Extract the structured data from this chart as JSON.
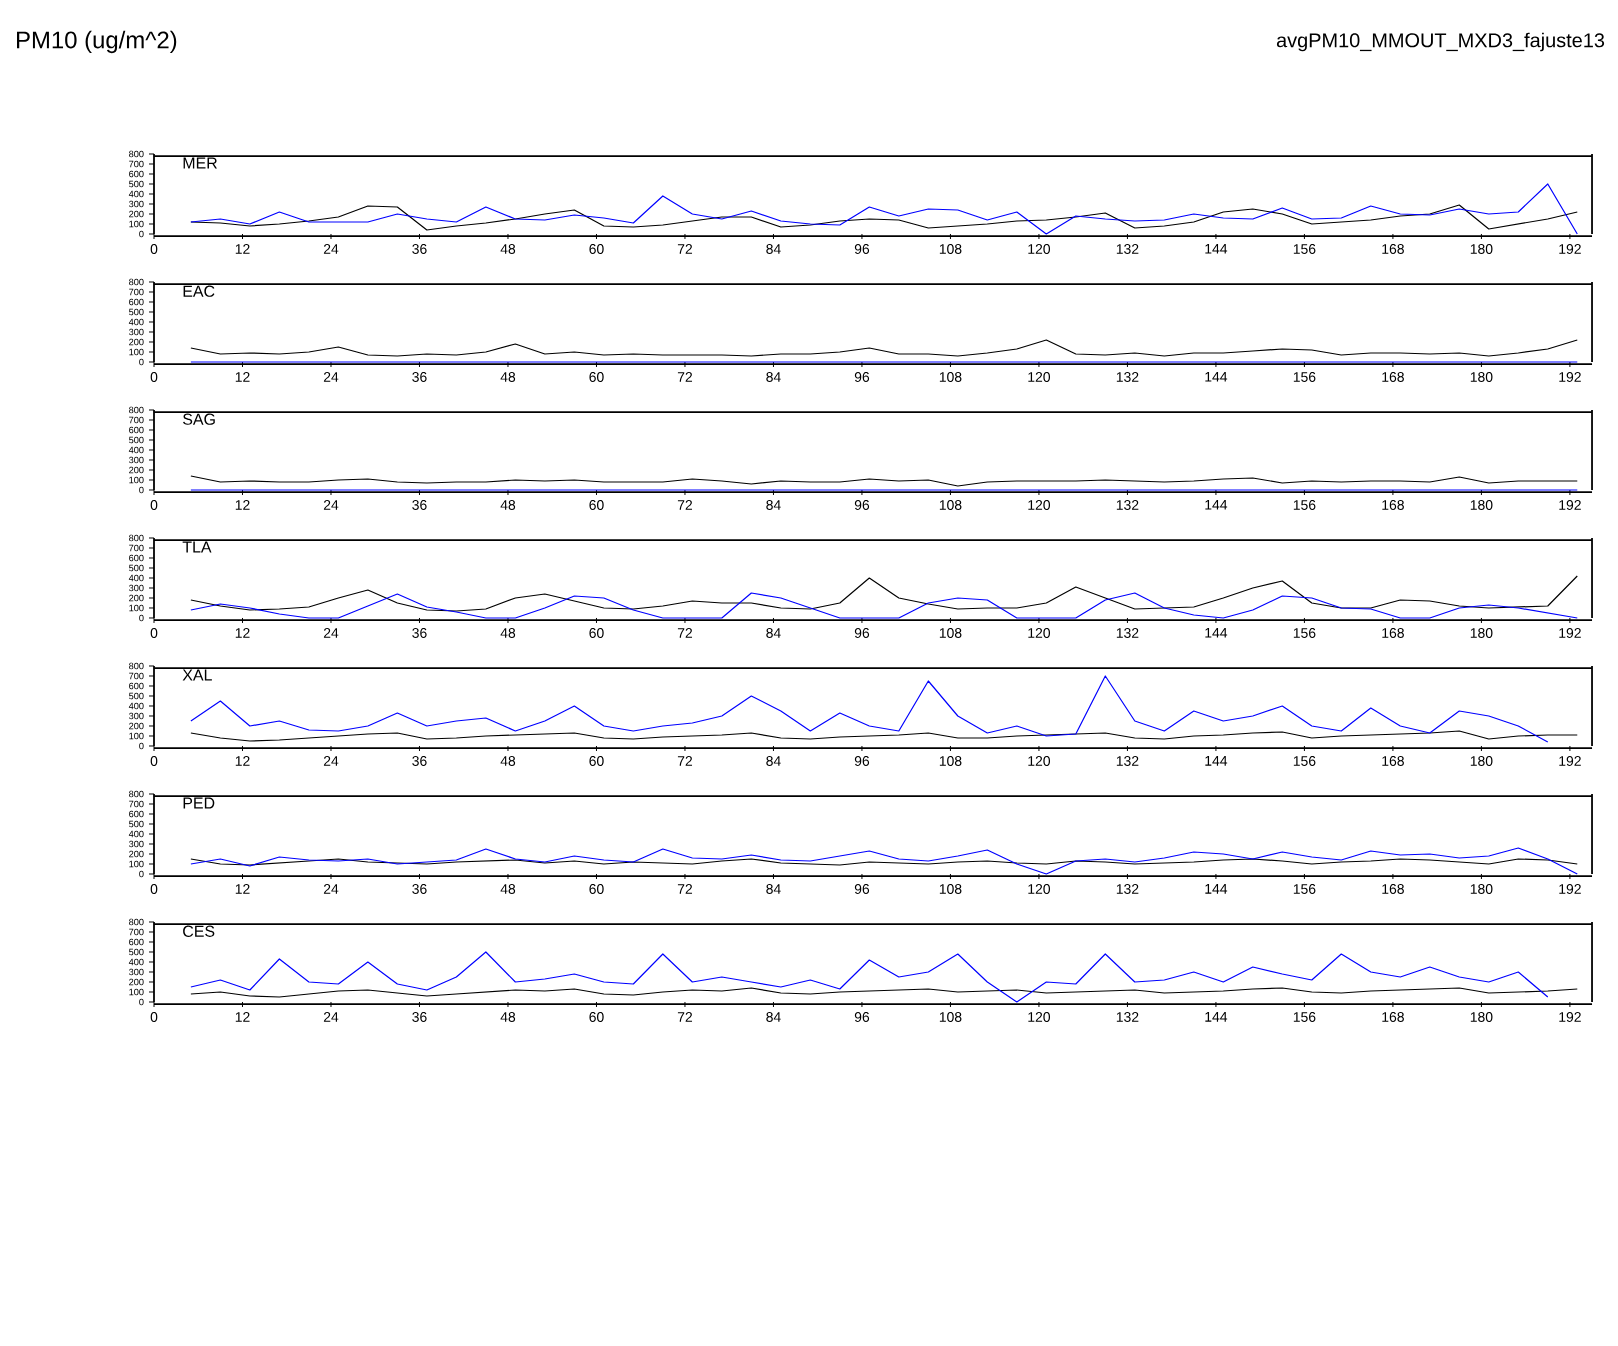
{
  "chart_data": [
    {
      "type": "line",
      "title": "PM10 (ug/m^2)",
      "subtitle": "avgPM10_MMOUT_MXD3_fajuste13",
      "annotations": [
        "MER"
      ],
      "x": [
        5,
        9,
        13,
        17,
        21,
        25,
        29,
        33,
        37,
        41,
        45,
        49,
        53,
        57,
        61,
        65,
        69,
        73,
        77,
        81,
        85,
        89,
        93,
        97,
        101,
        105,
        109,
        113,
        117,
        121,
        125,
        129,
        133,
        137,
        141,
        145,
        149,
        153,
        157,
        161,
        165,
        169,
        173,
        177,
        181,
        185,
        189,
        193
      ],
      "xlim": [
        0,
        195
      ],
      "xticks": [
        0,
        12,
        24,
        36,
        48,
        60,
        72,
        84,
        96,
        108,
        120,
        132,
        144,
        156,
        168,
        180,
        192
      ],
      "ylim": [
        0,
        800
      ],
      "yticks": [
        0,
        100,
        200,
        300,
        400,
        500,
        600,
        700,
        800
      ],
      "series": [
        {
          "color": "#000000",
          "values": [
            120,
            110,
            80,
            100,
            130,
            170,
            280,
            270,
            40,
            80,
            110,
            150,
            200,
            240,
            80,
            70,
            90,
            130,
            170,
            170,
            70,
            90,
            130,
            150,
            140,
            60,
            80,
            100,
            130,
            140,
            170,
            210,
            60,
            80,
            120,
            220,
            250,
            200,
            100,
            120,
            140,
            180,
            200,
            290,
            50,
            100,
            150,
            220
          ]
        },
        {
          "color": "#0000ff",
          "values": [
            120,
            150,
            100,
            220,
            120,
            120,
            120,
            200,
            150,
            120,
            270,
            150,
            140,
            190,
            160,
            110,
            380,
            200,
            150,
            230,
            130,
            100,
            90,
            270,
            180,
            250,
            240,
            140,
            220,
            0,
            180,
            150,
            130,
            140,
            200,
            160,
            150,
            260,
            150,
            160,
            280,
            200,
            190,
            250,
            200,
            220,
            500,
            0
          ]
        }
      ]
    },
    {
      "type": "line",
      "annotations": [
        "EAC"
      ],
      "x": [
        5,
        9,
        13,
        17,
        21,
        25,
        29,
        33,
        37,
        41,
        45,
        49,
        53,
        57,
        61,
        65,
        69,
        73,
        77,
        81,
        85,
        89,
        93,
        97,
        101,
        105,
        109,
        113,
        117,
        121,
        125,
        129,
        133,
        137,
        141,
        145,
        149,
        153,
        157,
        161,
        165,
        169,
        173,
        177,
        181,
        185,
        189,
        193
      ],
      "xlim": [
        0,
        195
      ],
      "xticks": [
        0,
        12,
        24,
        36,
        48,
        60,
        72,
        84,
        96,
        108,
        120,
        132,
        144,
        156,
        168,
        180,
        192
      ],
      "ylim": [
        0,
        800
      ],
      "yticks": [
        0,
        100,
        200,
        300,
        400,
        500,
        600,
        700,
        800
      ],
      "series": [
        {
          "color": "#000000",
          "values": [
            140,
            80,
            90,
            80,
            100,
            150,
            70,
            60,
            80,
            70,
            100,
            180,
            80,
            100,
            70,
            80,
            70,
            70,
            70,
            60,
            80,
            80,
            100,
            140,
            80,
            80,
            60,
            90,
            130,
            220,
            80,
            70,
            90,
            60,
            90,
            90,
            110,
            130,
            120,
            70,
            90,
            90,
            80,
            90,
            60,
            90,
            130,
            220
          ]
        },
        {
          "color": "#0000ff",
          "values": [
            0,
            0,
            0,
            0,
            0,
            0,
            0,
            0,
            0,
            0,
            0,
            0,
            0,
            0,
            0,
            0,
            0,
            0,
            0,
            0,
            0,
            0,
            0,
            0,
            0,
            0,
            0,
            0,
            0,
            0,
            0,
            0,
            0,
            0,
            0,
            0,
            0,
            0,
            0,
            0,
            0,
            0,
            0,
            0,
            0,
            0,
            0,
            0
          ]
        }
      ]
    },
    {
      "type": "line",
      "annotations": [
        "SAG"
      ],
      "x": [
        5,
        9,
        13,
        17,
        21,
        25,
        29,
        33,
        37,
        41,
        45,
        49,
        53,
        57,
        61,
        65,
        69,
        73,
        77,
        81,
        85,
        89,
        93,
        97,
        101,
        105,
        109,
        113,
        117,
        121,
        125,
        129,
        133,
        137,
        141,
        145,
        149,
        153,
        157,
        161,
        165,
        169,
        173,
        177,
        181,
        185,
        189,
        193
      ],
      "xlim": [
        0,
        195
      ],
      "xticks": [
        0,
        12,
        24,
        36,
        48,
        60,
        72,
        84,
        96,
        108,
        120,
        132,
        144,
        156,
        168,
        180,
        192
      ],
      "ylim": [
        0,
        800
      ],
      "yticks": [
        0,
        100,
        200,
        300,
        400,
        500,
        600,
        700,
        800
      ],
      "series": [
        {
          "color": "#000000",
          "values": [
            140,
            80,
            90,
            80,
            80,
            100,
            110,
            80,
            70,
            80,
            80,
            100,
            90,
            100,
            80,
            80,
            80,
            110,
            90,
            60,
            90,
            80,
            80,
            110,
            90,
            100,
            40,
            80,
            90,
            90,
            90,
            100,
            90,
            80,
            90,
            110,
            120,
            70,
            90,
            80,
            90,
            90,
            80,
            130,
            70,
            90,
            90,
            90
          ]
        },
        {
          "color": "#0000ff",
          "values": [
            0,
            0,
            0,
            0,
            0,
            0,
            0,
            0,
            0,
            0,
            0,
            0,
            0,
            0,
            0,
            0,
            0,
            0,
            0,
            0,
            0,
            0,
            0,
            0,
            0,
            0,
            0,
            0,
            0,
            0,
            0,
            0,
            0,
            0,
            0,
            0,
            0,
            0,
            0,
            0,
            0,
            0,
            0,
            0,
            0,
            0,
            0,
            0
          ]
        }
      ]
    },
    {
      "type": "line",
      "annotations": [
        "TLA"
      ],
      "x": [
        5,
        9,
        13,
        17,
        21,
        25,
        29,
        33,
        37,
        41,
        45,
        49,
        53,
        57,
        61,
        65,
        69,
        73,
        77,
        81,
        85,
        89,
        93,
        97,
        101,
        105,
        109,
        113,
        117,
        121,
        125,
        129,
        133,
        137,
        141,
        145,
        149,
        153,
        157,
        161,
        165,
        169,
        173,
        177,
        181,
        185,
        189,
        193
      ],
      "xlim": [
        0,
        195
      ],
      "xticks": [
        0,
        12,
        24,
        36,
        48,
        60,
        72,
        84,
        96,
        108,
        120,
        132,
        144,
        156,
        168,
        180,
        192
      ],
      "ylim": [
        0,
        800
      ],
      "yticks": [
        0,
        100,
        200,
        300,
        400,
        500,
        600,
        700,
        800
      ],
      "series": [
        {
          "color": "#000000",
          "values": [
            180,
            120,
            80,
            90,
            110,
            200,
            280,
            150,
            80,
            70,
            90,
            200,
            240,
            170,
            100,
            90,
            120,
            170,
            150,
            150,
            100,
            90,
            150,
            400,
            200,
            140,
            90,
            100,
            100,
            150,
            310,
            200,
            90,
            100,
            110,
            200,
            300,
            370,
            150,
            100,
            100,
            180,
            170,
            120,
            100,
            110,
            120,
            420
          ]
        },
        {
          "color": "#0000ff",
          "values": [
            80,
            140,
            100,
            40,
            0,
            0,
            120,
            240,
            110,
            60,
            0,
            0,
            100,
            220,
            200,
            80,
            0,
            0,
            0,
            250,
            200,
            100,
            0,
            0,
            0,
            150,
            200,
            180,
            0,
            0,
            0,
            180,
            250,
            100,
            30,
            0,
            80,
            220,
            200,
            100,
            90,
            0,
            0,
            100,
            130,
            100,
            50,
            0
          ]
        }
      ]
    },
    {
      "type": "line",
      "annotations": [
        "XAL"
      ],
      "x": [
        5,
        9,
        13,
        17,
        21,
        25,
        29,
        33,
        37,
        41,
        45,
        49,
        53,
        57,
        61,
        65,
        69,
        73,
        77,
        81,
        85,
        89,
        93,
        97,
        101,
        105,
        109,
        113,
        117,
        121,
        125,
        129,
        133,
        137,
        141,
        145,
        149,
        153,
        157,
        161,
        165,
        169,
        173,
        177,
        181,
        185,
        189,
        193
      ],
      "xlim": [
        0,
        195
      ],
      "xticks": [
        0,
        12,
        24,
        36,
        48,
        60,
        72,
        84,
        96,
        108,
        120,
        132,
        144,
        156,
        168,
        180,
        192
      ],
      "ylim": [
        0,
        800
      ],
      "yticks": [
        0,
        100,
        200,
        300,
        400,
        500,
        600,
        700,
        800
      ],
      "series": [
        {
          "color": "#000000",
          "values": [
            130,
            80,
            50,
            60,
            80,
            100,
            120,
            130,
            70,
            80,
            100,
            110,
            120,
            130,
            80,
            70,
            90,
            100,
            110,
            130,
            80,
            70,
            90,
            100,
            110,
            130,
            80,
            80,
            100,
            110,
            120,
            130,
            80,
            70,
            100,
            110,
            130,
            140,
            80,
            100,
            110,
            120,
            130,
            150,
            70,
            100,
            110,
            110
          ]
        },
        {
          "color": "#0000ff",
          "values": [
            250,
            450,
            200,
            250,
            160,
            150,
            200,
            330,
            200,
            250,
            280,
            150,
            250,
            400,
            200,
            150,
            200,
            230,
            300,
            500,
            350,
            150,
            330,
            200,
            150,
            650,
            300,
            130,
            200,
            100,
            120,
            700,
            250,
            150,
            350,
            250,
            300,
            400,
            200,
            150,
            380,
            200,
            130,
            350,
            300,
            200,
            40,
            null
          ]
        }
      ]
    },
    {
      "type": "line",
      "annotations": [
        "PED"
      ],
      "x": [
        5,
        9,
        13,
        17,
        21,
        25,
        29,
        33,
        37,
        41,
        45,
        49,
        53,
        57,
        61,
        65,
        69,
        73,
        77,
        81,
        85,
        89,
        93,
        97,
        101,
        105,
        109,
        113,
        117,
        121,
        125,
        129,
        133,
        137,
        141,
        145,
        149,
        153,
        157,
        161,
        165,
        169,
        173,
        177,
        181,
        185,
        189,
        193
      ],
      "xlim": [
        0,
        195
      ],
      "xticks": [
        0,
        12,
        24,
        36,
        48,
        60,
        72,
        84,
        96,
        108,
        120,
        132,
        144,
        156,
        168,
        180,
        192
      ],
      "ylim": [
        0,
        800
      ],
      "yticks": [
        0,
        100,
        200,
        300,
        400,
        500,
        600,
        700,
        800
      ],
      "series": [
        {
          "color": "#000000",
          "values": [
            150,
            100,
            90,
            110,
            130,
            150,
            120,
            110,
            100,
            120,
            130,
            140,
            110,
            130,
            100,
            120,
            110,
            100,
            130,
            150,
            110,
            100,
            90,
            120,
            110,
            100,
            120,
            130,
            110,
            100,
            130,
            120,
            100,
            110,
            120,
            140,
            150,
            130,
            100,
            120,
            130,
            150,
            140,
            120,
            100,
            150,
            140,
            100
          ]
        },
        {
          "color": "#0000ff",
          "values": [
            100,
            150,
            80,
            170,
            140,
            130,
            150,
            100,
            120,
            140,
            250,
            150,
            120,
            180,
            140,
            120,
            250,
            160,
            150,
            190,
            140,
            130,
            180,
            230,
            150,
            130,
            180,
            240,
            100,
            0,
            130,
            150,
            120,
            160,
            220,
            200,
            150,
            220,
            170,
            140,
            230,
            190,
            200,
            160,
            180,
            260,
            150,
            0
          ]
        }
      ]
    },
    {
      "type": "line",
      "annotations": [
        "CES"
      ],
      "x": [
        5,
        9,
        13,
        17,
        21,
        25,
        29,
        33,
        37,
        41,
        45,
        49,
        53,
        57,
        61,
        65,
        69,
        73,
        77,
        81,
        85,
        89,
        93,
        97,
        101,
        105,
        109,
        113,
        117,
        121,
        125,
        129,
        133,
        137,
        141,
        145,
        149,
        153,
        157,
        161,
        165,
        169,
        173,
        177,
        181,
        185,
        189,
        193
      ],
      "xlim": [
        0,
        195
      ],
      "xticks": [
        0,
        12,
        24,
        36,
        48,
        60,
        72,
        84,
        96,
        108,
        120,
        132,
        144,
        156,
        168,
        180,
        192
      ],
      "ylim": [
        0,
        800
      ],
      "yticks": [
        0,
        100,
        200,
        300,
        400,
        500,
        600,
        700,
        800
      ],
      "series": [
        {
          "color": "#000000",
          "values": [
            80,
            100,
            60,
            50,
            80,
            110,
            120,
            90,
            60,
            80,
            100,
            120,
            110,
            130,
            80,
            70,
            100,
            120,
            110,
            140,
            90,
            80,
            100,
            110,
            120,
            130,
            100,
            110,
            120,
            90,
            100,
            110,
            120,
            90,
            100,
            110,
            130,
            140,
            100,
            90,
            110,
            120,
            130,
            140,
            90,
            100,
            110,
            130
          ]
        },
        {
          "color": "#0000ff",
          "values": [
            150,
            220,
            120,
            430,
            200,
            180,
            400,
            180,
            120,
            250,
            500,
            200,
            230,
            280,
            200,
            180,
            480,
            200,
            250,
            200,
            150,
            220,
            130,
            420,
            250,
            300,
            480,
            200,
            0,
            200,
            180,
            480,
            200,
            220,
            300,
            200,
            350,
            280,
            220,
            480,
            300,
            250,
            350,
            250,
            200,
            300,
            50,
            null
          ]
        }
      ]
    }
  ]
}
